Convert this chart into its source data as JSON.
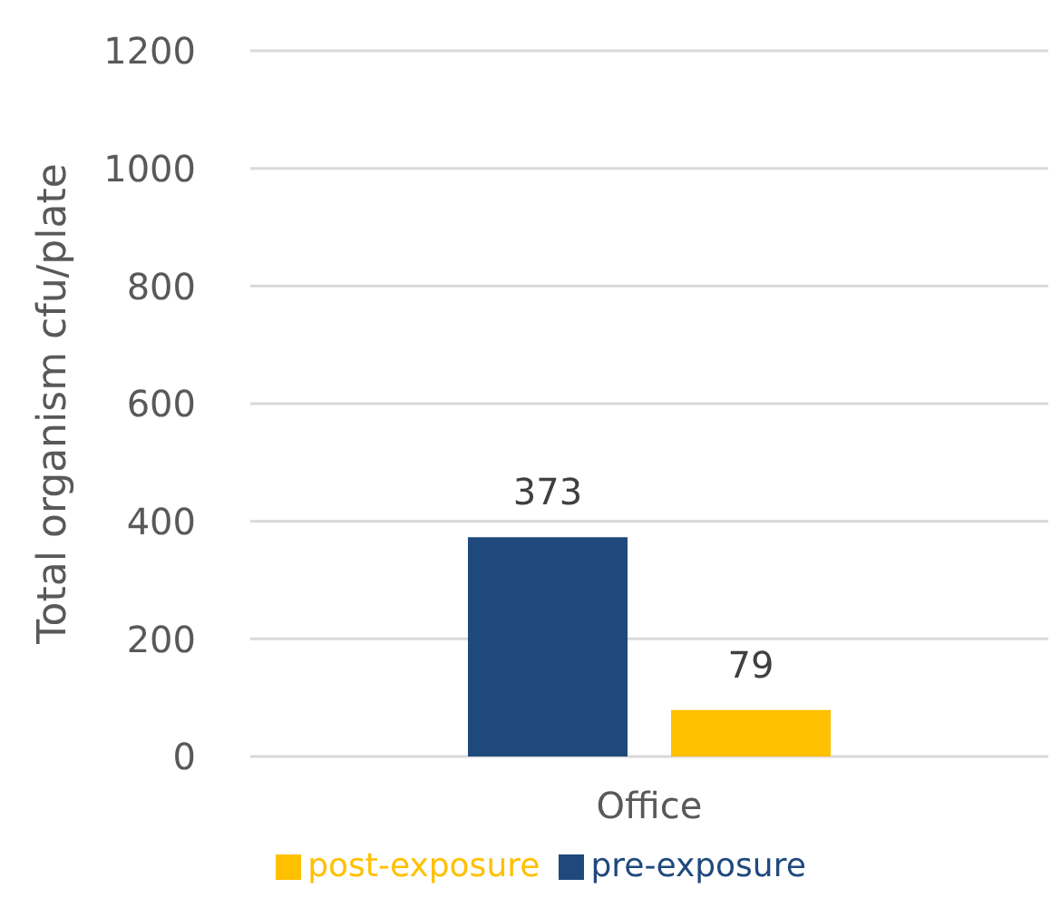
{
  "chart_data": {
    "type": "bar",
    "ylabel": "Total organism cfu/plate",
    "categories": [
      "Office"
    ],
    "series": [
      {
        "name": "pre-exposure",
        "color": "#1f497d",
        "values": [
          373
        ]
      },
      {
        "name": "post-exposure",
        "color": "#ffc000",
        "values": [
          79
        ]
      }
    ],
    "ylim": [
      0,
      1200
    ],
    "yticks": [
      0,
      200,
      400,
      600,
      800,
      1000,
      1200
    ],
    "grid": "y",
    "legend": "bottom",
    "data_labels": true
  }
}
